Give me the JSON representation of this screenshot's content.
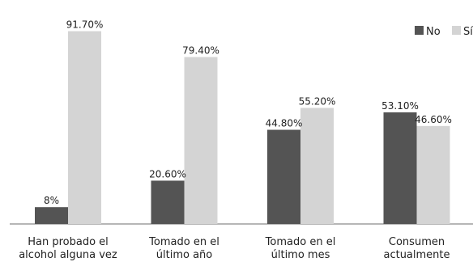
{
  "chart_data": {
    "type": "bar",
    "categories": [
      [
        "Han probado el",
        "alcohol alguna vez"
      ],
      [
        "Tomado en el",
        "último año"
      ],
      [
        "Tomado en el",
        "último mes"
      ],
      [
        "Consumen",
        "actualmente"
      ]
    ],
    "series": [
      {
        "name": "No",
        "values": [
          8,
          20.6,
          44.8,
          53.1
        ],
        "labels": [
          "8%",
          "20.60%",
          "44.80%",
          "53.10%"
        ],
        "color": "#545454"
      },
      {
        "name": "Sí",
        "values": [
          91.7,
          79.4,
          55.2,
          46.6
        ],
        "labels": [
          "91.70%",
          "79.40%",
          "55.20%",
          "46.60%"
        ],
        "color": "#d4d4d4"
      }
    ],
    "ylim": [
      0,
      100
    ],
    "legend_position": "top-right",
    "grid": false
  }
}
